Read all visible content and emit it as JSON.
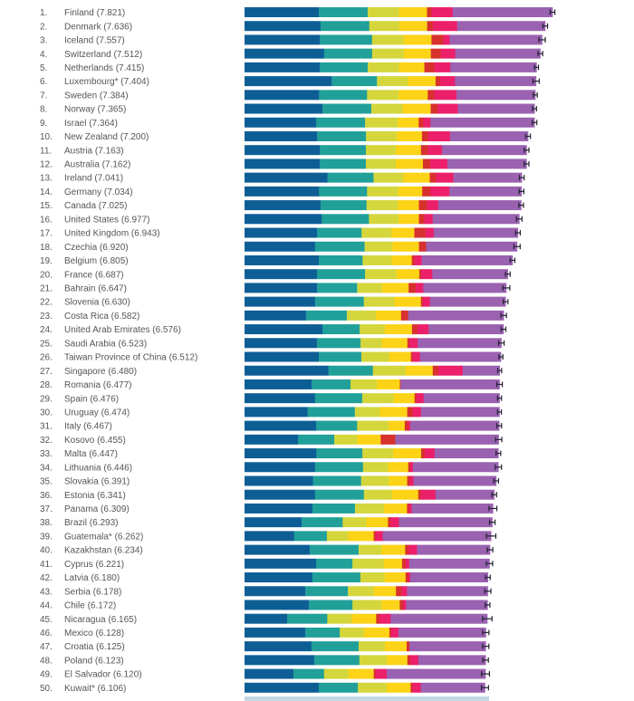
{
  "chart_data": {
    "type": "bar",
    "orientation": "horizontal",
    "stacked": true,
    "title": "",
    "xlabel": "",
    "ylabel": "",
    "grid": false,
    "legend": "none",
    "xlim": [
      0,
      7.821
    ],
    "segments": [
      {
        "key": "gdp",
        "color": "#0e5e96"
      },
      {
        "key": "social_support",
        "color": "#21a09a"
      },
      {
        "key": "healthy_life",
        "color": "#d4d63c"
      },
      {
        "key": "freedom",
        "color": "#fdd317"
      },
      {
        "key": "generosity",
        "color": "#d7312e"
      },
      {
        "key": "corruption",
        "color": "#ec1f6a"
      },
      {
        "key": "dystopia_residual",
        "color": "#9a62b0"
      }
    ],
    "errorbar_color": "#222233",
    "rows": [
      {
        "rank": "1.",
        "country": "Finland",
        "score": 7.821,
        "label": "Finland (7.821)",
        "parts": [
          1.89,
          1.24,
          0.8,
          0.71,
          0.12,
          0.53,
          2.54
        ],
        "ci": 0.06
      },
      {
        "rank": "2.",
        "country": "Denmark",
        "score": 7.636,
        "label": "Denmark (7.636)",
        "parts": [
          1.93,
          1.24,
          0.76,
          0.71,
          0.14,
          0.62,
          2.24
        ],
        "ci": 0.06
      },
      {
        "rank": "3.",
        "country": "Iceland",
        "score": 7.557,
        "label": "Iceland (7.557)",
        "parts": [
          1.91,
          1.33,
          0.8,
          0.71,
          0.3,
          0.16,
          2.35
        ],
        "ci": 0.08
      },
      {
        "rank": "4.",
        "country": "Switzerland",
        "score": 7.512,
        "label": "Switzerland (7.512)",
        "parts": [
          2.02,
          1.22,
          0.8,
          0.69,
          0.25,
          0.37,
          2.16
        ],
        "ci": 0.06
      },
      {
        "rank": "5.",
        "country": "Netherlands",
        "score": 7.415,
        "label": "Netherlands (7.415)",
        "parts": [
          1.91,
          1.22,
          0.8,
          0.64,
          0.25,
          0.41,
          2.19
        ],
        "ci": 0.05
      },
      {
        "rank": "6.",
        "country": "Luxembourg*",
        "score": 7.404,
        "label": "Luxembourg* (7.404)",
        "parts": [
          2.21,
          1.15,
          0.78,
          0.71,
          0.12,
          0.37,
          2.06
        ],
        "ci": 0.08
      },
      {
        "rank": "7.",
        "country": "Sweden",
        "score": 7.384,
        "label": "Sweden (7.384)",
        "parts": [
          1.89,
          1.22,
          0.8,
          0.74,
          0.16,
          0.57,
          2.0
        ],
        "ci": 0.05
      },
      {
        "rank": "8.",
        "country": "Norway",
        "score": 7.365,
        "label": "Norway (7.365)",
        "parts": [
          1.98,
          1.24,
          0.8,
          0.71,
          0.18,
          0.51,
          1.95
        ],
        "ci": 0.05
      },
      {
        "rank": "9.",
        "country": "Israel",
        "score": 7.364,
        "label": "Israel (7.364)",
        "parts": [
          1.82,
          1.24,
          0.83,
          0.53,
          0.12,
          0.18,
          2.64
        ],
        "ci": 0.06
      },
      {
        "rank": "10.",
        "country": "New Zealand",
        "score": 7.2,
        "label": "New Zealand (7.200)",
        "parts": [
          1.84,
          1.24,
          0.78,
          0.64,
          0.16,
          0.55,
          1.98
        ],
        "ci": 0.06
      },
      {
        "rank": "11.",
        "country": "Austria",
        "score": 7.163,
        "label": "Austria (7.163)",
        "parts": [
          1.91,
          1.17,
          0.76,
          0.64,
          0.18,
          0.35,
          2.15
        ],
        "ci": 0.06
      },
      {
        "rank": "12.",
        "country": "Australia",
        "score": 7.162,
        "label": "Australia (7.162)",
        "parts": [
          1.91,
          1.17,
          0.76,
          0.69,
          0.18,
          0.44,
          2.01
        ],
        "ci": 0.06
      },
      {
        "rank": "13.",
        "country": "Ireland",
        "score": 7.041,
        "label": "Ireland (7.041)",
        "parts": [
          2.11,
          1.17,
          0.76,
          0.67,
          0.16,
          0.44,
          1.74
        ],
        "ci": 0.06
      },
      {
        "rank": "14.",
        "country": "Germany",
        "score": 7.034,
        "label": "Germany (7.034)",
        "parts": [
          1.89,
          1.22,
          0.8,
          0.6,
          0.21,
          0.48,
          1.83
        ],
        "ci": 0.06
      },
      {
        "rank": "15.",
        "country": "Canada",
        "score": 7.025,
        "label": "Canada (7.025)",
        "parts": [
          1.93,
          1.17,
          0.8,
          0.53,
          0.21,
          0.28,
          2.11
        ],
        "ci": 0.06
      },
      {
        "rank": "16.",
        "country": "United States",
        "score": 6.977,
        "label": "United States (6.977)",
        "parts": [
          1.96,
          1.2,
          0.76,
          0.51,
          0.14,
          0.21,
          2.2
        ],
        "ci": 0.07
      },
      {
        "rank": "17.",
        "country": "United Kingdom",
        "score": 6.943,
        "label": "United Kingdom (6.943)",
        "parts": [
          1.84,
          1.13,
          0.76,
          0.58,
          0.28,
          0.21,
          2.14
        ],
        "ci": 0.06
      },
      {
        "rank": "18.",
        "country": "Czechia",
        "score": 6.92,
        "label": "Czechia (6.920)",
        "parts": [
          1.79,
          1.26,
          0.71,
          0.67,
          0.18,
          0.0,
          2.31
        ],
        "ci": 0.08
      },
      {
        "rank": "19.",
        "country": "Belgium",
        "score": 6.805,
        "label": "Belgium (6.805)",
        "parts": [
          1.89,
          1.11,
          0.74,
          0.51,
          0.07,
          0.18,
          2.31
        ],
        "ci": 0.06
      },
      {
        "rank": "20.",
        "country": "France",
        "score": 6.687,
        "label": "France (6.687)",
        "parts": [
          1.84,
          1.22,
          0.8,
          0.58,
          0.05,
          0.28,
          1.92
        ],
        "ci": 0.06
      },
      {
        "rank": "21.",
        "country": "Bahrain",
        "score": 6.647,
        "label": "Bahrain (6.647)",
        "parts": [
          1.84,
          1.02,
          0.64,
          0.67,
          0.18,
          0.19,
          2.11
        ],
        "ci": 0.09
      },
      {
        "rank": "22.",
        "country": "Slovenia",
        "score": 6.63,
        "label": "Slovenia (6.630)",
        "parts": [
          1.79,
          1.24,
          0.78,
          0.67,
          0.05,
          0.18,
          1.92
        ],
        "ci": 0.06
      },
      {
        "rank": "23.",
        "country": "Costa Rica",
        "score": 6.582,
        "label": "Costa Rica (6.582)",
        "parts": [
          1.56,
          1.04,
          0.74,
          0.64,
          0.18,
          0.0,
          2.43
        ],
        "ci": 0.07
      },
      {
        "rank": "24.",
        "country": "United Arab Emirates",
        "score": 6.576,
        "label": "United Arab Emirates (6.576)",
        "parts": [
          1.98,
          0.94,
          0.64,
          0.69,
          0.14,
          0.28,
          1.9
        ],
        "ci": 0.06
      },
      {
        "rank": "25.",
        "country": "Saudi Arabia",
        "score": 6.523,
        "label": "Saudi Arabia (6.523)",
        "parts": [
          1.84,
          1.11,
          0.55,
          0.64,
          0.05,
          0.21,
          2.13
        ],
        "ci": 0.07
      },
      {
        "rank": "26.",
        "country": "Taiwan Province of China",
        "score": 6.512,
        "label": "Taiwan Province of China (6.512)",
        "parts": [
          1.89,
          1.08,
          0.71,
          0.55,
          0.05,
          0.18,
          2.06
        ],
        "ci": 0.05
      },
      {
        "rank": "27.",
        "country": "Singapore",
        "score": 6.48,
        "label": "Singapore (6.480)",
        "parts": [
          2.13,
          1.13,
          0.83,
          0.69,
          0.14,
          0.62,
          0.94
        ],
        "ci": 0.05
      },
      {
        "rank": "28.",
        "country": "Romania",
        "score": 6.477,
        "label": "Romania (6.477)",
        "parts": [
          1.7,
          0.99,
          0.67,
          0.58,
          0.02,
          0.0,
          2.51
        ],
        "ci": 0.07
      },
      {
        "rank": "29.",
        "country": "Spain",
        "score": 6.476,
        "label": "Spain (6.476)",
        "parts": [
          1.79,
          1.2,
          0.8,
          0.53,
          0.05,
          0.18,
          1.93
        ],
        "ci": 0.05
      },
      {
        "rank": "30.",
        "country": "Uruguay",
        "score": 6.474,
        "label": "Uruguay (6.474)",
        "parts": [
          1.6,
          1.2,
          0.64,
          0.69,
          0.14,
          0.21,
          1.99
        ],
        "ci": 0.05
      },
      {
        "rank": "31.",
        "country": "Italy",
        "score": 6.467,
        "label": "Italy (6.467)",
        "parts": [
          1.82,
          1.04,
          0.8,
          0.41,
          0.09,
          0.05,
          2.26
        ],
        "ci": 0.06
      },
      {
        "rank": "32.",
        "country": "Kosovo",
        "score": 6.455,
        "label": "Kosovo (6.455)",
        "parts": [
          1.36,
          0.92,
          0.58,
          0.6,
          0.37,
          0.0,
          2.63
        ],
        "ci": 0.08
      },
      {
        "rank": "33.",
        "country": "Malta",
        "score": 6.447,
        "label": "Malta (6.447)",
        "parts": [
          1.82,
          1.17,
          0.78,
          0.71,
          0.09,
          0.25,
          1.62
        ],
        "ci": 0.06
      },
      {
        "rank": "34.",
        "country": "Lithuania",
        "score": 6.446,
        "label": "Lithuania (6.446)",
        "parts": [
          1.79,
          1.22,
          0.64,
          0.51,
          0.05,
          0.07,
          2.17
        ],
        "ci": 0.08
      },
      {
        "rank": "35.",
        "country": "Slovakia",
        "score": 6.391,
        "label": "Slovakia (6.391)",
        "parts": [
          1.74,
          1.22,
          0.71,
          0.46,
          0.07,
          0.09,
          2.1
        ],
        "ci": 0.06
      },
      {
        "rank": "36.",
        "country": "Estonia",
        "score": 6.341,
        "label": "Estonia (6.341)",
        "parts": [
          1.79,
          1.24,
          0.71,
          0.67,
          0.07,
          0.37,
          1.49
        ],
        "ci": 0.06
      },
      {
        "rank": "37.",
        "country": "Panama",
        "score": 6.309,
        "label": "Panama (6.309)",
        "parts": [
          1.72,
          1.08,
          0.74,
          0.58,
          0.05,
          0.07,
          2.06
        ],
        "ci": 0.1
      },
      {
        "rank": "38.",
        "country": "Brazil",
        "score": 6.293,
        "label": "Brazil (6.293)",
        "parts": [
          1.45,
          1.04,
          0.6,
          0.55,
          0.07,
          0.21,
          2.37
        ],
        "ci": 0.07
      },
      {
        "rank": "39.",
        "country": "Guatemala*",
        "score": 6.262,
        "label": "Guatemala* (6.262)",
        "parts": [
          1.26,
          0.83,
          0.55,
          0.64,
          0.05,
          0.18,
          2.75
        ],
        "ci": 0.12
      },
      {
        "rank": "40.",
        "country": "Kazakhstan",
        "score": 6.234,
        "label": "Kazakhstan (6.234)",
        "parts": [
          1.65,
          1.24,
          0.58,
          0.6,
          0.09,
          0.21,
          1.85
        ],
        "ci": 0.07
      },
      {
        "rank": "41.",
        "country": "Cyprus",
        "score": 6.221,
        "label": "Cyprus (6.221)",
        "parts": [
          1.82,
          0.92,
          0.8,
          0.46,
          0.09,
          0.09,
          2.04
        ],
        "ci": 0.08
      },
      {
        "rank": "42.",
        "country": "Latvia",
        "score": 6.18,
        "label": "Latvia (6.180)",
        "parts": [
          1.72,
          1.22,
          0.62,
          0.53,
          0.07,
          0.05,
          1.97
        ],
        "ci": 0.06
      },
      {
        "rank": "43.",
        "country": "Serbia",
        "score": 6.178,
        "label": "Serbia (6.178)",
        "parts": [
          1.54,
          1.08,
          0.67,
          0.55,
          0.14,
          0.14,
          2.05
        ],
        "ci": 0.08
      },
      {
        "rank": "44.",
        "country": "Chile",
        "score": 6.172,
        "label": "Chile (6.172)",
        "parts": [
          1.63,
          1.11,
          0.74,
          0.46,
          0.09,
          0.07,
          2.07
        ],
        "ci": 0.06
      },
      {
        "rank": "45.",
        "country": "Nicaragua",
        "score": 6.165,
        "label": "Nicaragua (6.165)",
        "parts": [
          1.08,
          1.02,
          0.62,
          0.62,
          0.09,
          0.28,
          2.45
        ],
        "ci": 0.12
      },
      {
        "rank": "46.",
        "country": "Mexico",
        "score": 6.128,
        "label": "Mexico (6.128)",
        "parts": [
          1.54,
          0.88,
          0.62,
          0.64,
          0.05,
          0.18,
          2.22
        ],
        "ci": 0.08
      },
      {
        "rank": "47.",
        "country": "Croatia",
        "score": 6.125,
        "label": "Croatia (6.125)",
        "parts": [
          1.7,
          1.2,
          0.67,
          0.55,
          0.07,
          0.0,
          1.94
        ],
        "ci": 0.08
      },
      {
        "rank": "48.",
        "country": "Poland",
        "score": 6.123,
        "label": "Poland (6.123)",
        "parts": [
          1.77,
          1.15,
          0.71,
          0.51,
          0.07,
          0.21,
          1.71
        ],
        "ci": 0.07
      },
      {
        "rank": "49.",
        "country": "El Salvador",
        "score": 6.12,
        "label": "El Salvador (6.120)",
        "parts": [
          1.24,
          0.78,
          0.62,
          0.64,
          0.05,
          0.28,
          2.51
        ],
        "ci": 0.1
      },
      {
        "rank": "50.",
        "country": "Kuwait*",
        "score": 6.106,
        "label": "Kuwait* (6.106)",
        "parts": [
          1.89,
          0.99,
          0.74,
          0.6,
          0.05,
          0.21,
          1.63
        ],
        "ci": 0.09
      }
    ]
  }
}
